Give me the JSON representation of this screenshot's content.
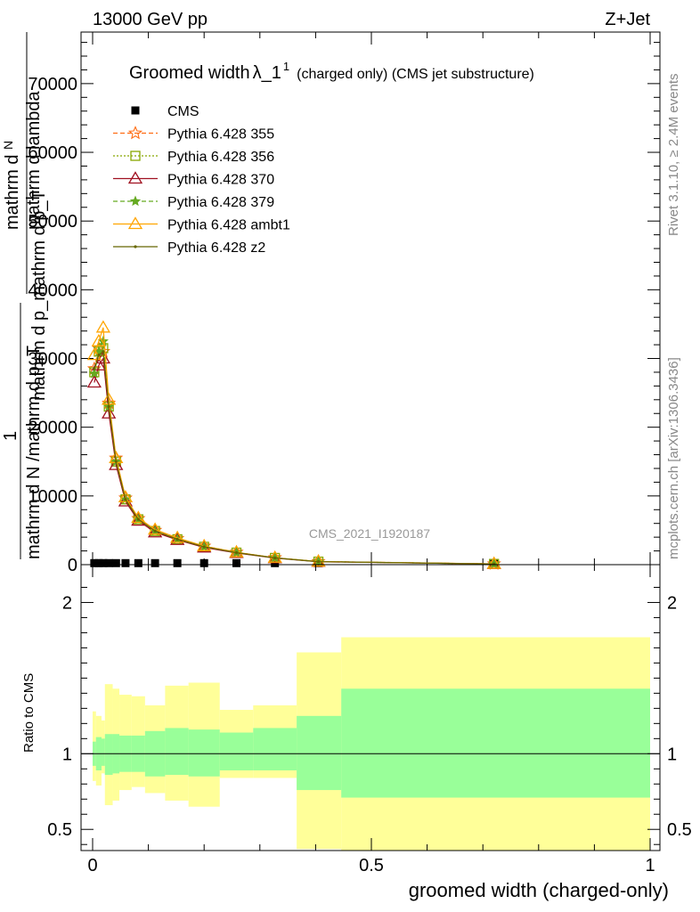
{
  "header": {
    "left": "13000 GeV pp",
    "right": "Z+Jet"
  },
  "side": {
    "rivet": "Rivet 3.1.10, ≥ 2.4M events",
    "mcplots": "mcplots.cern.ch [arXiv:1306.3436]"
  },
  "watermark": "CMS_2021_I1920187",
  "legend": {
    "title_main": "Groomed width",
    "title_sym": "λ_1",
    "title_sup": "1",
    "title_rest": "(charged only) (CMS jet substructure)"
  },
  "ylabel_main": {
    "lines": [
      "mathrm d",
      "N",
      "mathrm d lambda",
      "mathrm d p_mathrm d p_T",
      "1",
      "mathrm d N /mathrm d p_T"
    ]
  },
  "colors": {
    "band_stat": "#99ff99",
    "band_total": "#ffff99",
    "cms": "#000000",
    "p355": "#ff6d14",
    "p356": "#88a800",
    "p370": "#a01020",
    "p379": "#66aa22",
    "ambt1": "#ffa500",
    "z2": "#666600"
  },
  "chart_data": [
    {
      "type": "line",
      "title": "Groomed width λ_1^1 (charged only) (CMS jet substructure)",
      "xlabel": "groomed width (charged-only)",
      "ylabel": "1 / (mathrm d N /mathrm d p_T) mathrm d^2N / (mathrm d p_T mathrm d lambda)",
      "xlim": [
        -0.02,
        1.02
      ],
      "ylim": [
        0,
        77500
      ],
      "yticks": [
        0,
        10000,
        20000,
        30000,
        40000,
        50000,
        60000,
        70000
      ],
      "ytick_labels": [
        "0",
        "10000",
        "20000",
        "30000",
        "40000",
        "50000",
        "60000",
        "70000"
      ],
      "x": [
        0.003,
        0.011,
        0.019,
        0.029,
        0.042,
        0.059,
        0.082,
        0.112,
        0.152,
        0.2,
        0.258,
        0.327,
        0.405,
        0.72
      ],
      "series": [
        {
          "name": "CMS",
          "marker": "square",
          "values": [
            220,
            220,
            220,
            220,
            220,
            220,
            220,
            220,
            220,
            220,
            220,
            220,
            220,
            220
          ]
        },
        {
          "name": "Pythia 6.428 355",
          "marker": "star",
          "dash": "dashed",
          "values": [
            28500,
            31500,
            31000,
            23500,
            15500,
            9700,
            6700,
            5000,
            3800,
            2700,
            1800,
            1000,
            450,
            120
          ]
        },
        {
          "name": "Pythia 6.428 356",
          "marker": "square-open",
          "dash": "dotted",
          "values": [
            28000,
            31000,
            31500,
            23000,
            15000,
            9500,
            6600,
            4900,
            3700,
            2600,
            1750,
            980,
            440,
            110
          ]
        },
        {
          "name": "Pythia 6.428 370",
          "marker": "triangle-open",
          "dash": "solid",
          "values": [
            26500,
            29000,
            30000,
            22000,
            14500,
            9200,
            6400,
            4700,
            3600,
            2500,
            1700,
            950,
            420,
            100
          ]
        },
        {
          "name": "Pythia 6.428 379",
          "marker": "star-small",
          "dash": "dashed",
          "values": [
            27800,
            31000,
            32500,
            23000,
            15000,
            9500,
            6600,
            4900,
            3700,
            2600,
            1750,
            980,
            440,
            110
          ]
        },
        {
          "name": "Pythia 6.428 ambt1",
          "marker": "triangle-open",
          "dash": "solid",
          "values": [
            30500,
            32500,
            34500,
            24000,
            15500,
            9800,
            6800,
            5100,
            3900,
            2700,
            1800,
            1000,
            460,
            120
          ]
        },
        {
          "name": "Pythia 6.428 z2",
          "marker": "dot",
          "dash": "solid",
          "values": [
            28500,
            30500,
            31000,
            23000,
            15000,
            9500,
            6600,
            4900,
            3700,
            2600,
            1750,
            980,
            440,
            110
          ]
        }
      ]
    },
    {
      "type": "area",
      "xlabel": "groomed width (charged-only)",
      "ylabel": "Ratio to CMS",
      "xlim": [
        -0.02,
        1.02
      ],
      "ylim": [
        0.36,
        2.25
      ],
      "xticks": [
        0,
        0.5,
        1
      ],
      "xtick_labels": [
        "0",
        "0.5",
        "1"
      ],
      "yticks": [
        0.5,
        1,
        2
      ],
      "ytick_labels": [
        "0.5",
        "1",
        "2"
      ],
      "reference_line": 1,
      "bins": [
        0,
        0.006,
        0.016,
        0.022,
        0.036,
        0.048,
        0.07,
        0.094,
        0.13,
        0.172,
        0.228,
        0.288,
        0.366,
        0.446,
        1.0
      ],
      "band_stat_low": [
        0.92,
        0.89,
        0.92,
        0.86,
        0.87,
        0.88,
        0.88,
        0.85,
        0.86,
        0.85,
        0.89,
        0.89,
        0.76,
        0.71
      ],
      "band_stat_high": [
        1.08,
        1.11,
        1.1,
        1.13,
        1.13,
        1.12,
        1.12,
        1.15,
        1.17,
        1.16,
        1.14,
        1.17,
        1.25,
        1.43
      ],
      "band_total_low": [
        0.82,
        0.79,
        0.87,
        0.66,
        0.69,
        0.76,
        0.78,
        0.74,
        0.69,
        0.65,
        0.84,
        0.84,
        0.37,
        0.36
      ],
      "band_total_high": [
        1.28,
        1.25,
        1.22,
        1.46,
        1.43,
        1.39,
        1.38,
        1.32,
        1.45,
        1.47,
        1.29,
        1.32,
        1.67,
        1.77
      ]
    }
  ]
}
